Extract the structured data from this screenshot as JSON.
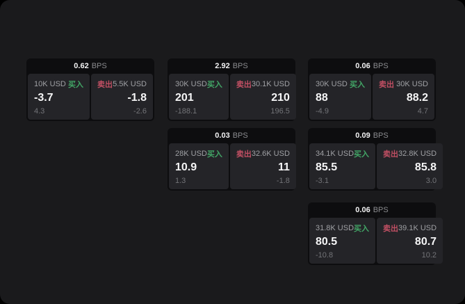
{
  "labels": {
    "bps_unit": "BPS",
    "buy": "买入",
    "sell": "卖出"
  },
  "colors": {
    "buy_green": "#42a566",
    "sell_red": "#c04f63",
    "page_background": "#1a1a1c",
    "card_background": "#0d0d0f",
    "panel_background": "#242428"
  },
  "cards": [
    {
      "bps": "0.62",
      "buy": {
        "size": "10K USD",
        "price": "-3.7",
        "sub": "4.3"
      },
      "sell": {
        "size": "5.5K USD",
        "price": "-1.8",
        "sub": "-2.6"
      }
    },
    {
      "bps": "2.92",
      "buy": {
        "size": "30K USD",
        "price": "201",
        "sub": "-188.1"
      },
      "sell": {
        "size": "30.1K USD",
        "price": "210",
        "sub": "196.5"
      }
    },
    {
      "bps": "0.06",
      "buy": {
        "size": "30K USD",
        "price": "88",
        "sub": "-4.9"
      },
      "sell": {
        "size": "30K USD",
        "price": "88.2",
        "sub": "4.7"
      }
    },
    {
      "bps": "0.03",
      "buy": {
        "size": "28K USD",
        "price": "10.9",
        "sub": "1.3"
      },
      "sell": {
        "size": "32.6K USD",
        "price": "11",
        "sub": "-1.8"
      }
    },
    {
      "bps": "0.09",
      "buy": {
        "size": "34.1K USD",
        "price": "85.5",
        "sub": "-3.1"
      },
      "sell": {
        "size": "32.8K USD",
        "price": "85.8",
        "sub": "3.0"
      }
    },
    {
      "bps": "0.06",
      "buy": {
        "size": "31.8K USD",
        "price": "80.5",
        "sub": "-10.8"
      },
      "sell": {
        "size": "39.1K USD",
        "price": "80.7",
        "sub": "10.2"
      }
    }
  ]
}
